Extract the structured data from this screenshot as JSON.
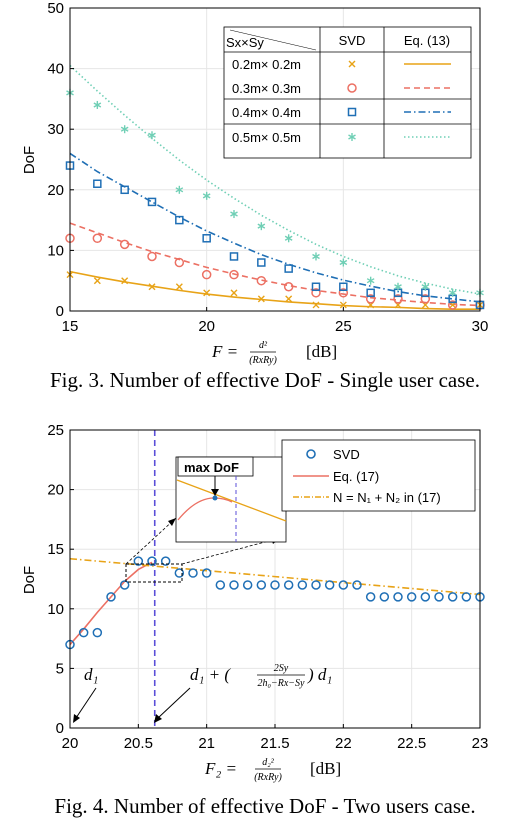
{
  "figure3": {
    "caption": "Fig. 3. Number of effective DoF - Single user case.",
    "xlabel_main": "F =",
    "xlabel_num": "d²",
    "xlabel_den": "(RxRy)",
    "xlabel_unit": "[dB]",
    "legend": {
      "corner": "Sx×Sy",
      "col_svd": "SVD",
      "col_eq": "Eq. (13)",
      "rows": [
        "0.2m× 0.2m",
        "0.3m× 0.3m",
        "0.4m× 0.4m",
        "0.5m× 0.5m"
      ]
    }
  },
  "figure4": {
    "caption": "Fig. 4. Number of effective DoF - Two users case.",
    "xlabel_main": "F₂ =",
    "xlabel_num": "d₂²",
    "xlabel_den": "(RxRy)",
    "xlabel_unit": "[dB]",
    "inset_label": "max DoF",
    "annot_d1": "d₁",
    "annot_expr_a": "d₁ + (",
    "annot_expr_num": "2Sy",
    "annot_expr_den": "2h₀−Rx−Sy",
    "annot_expr_b": ") d₁",
    "legend": {
      "svd": "SVD",
      "eq": "Eq. (17)",
      "neq": "N = N₁ + N₂ in (17)"
    }
  },
  "chart_data": [
    {
      "type": "scatter",
      "title": "",
      "xlabel": "F = d²/(RxRy) [dB]",
      "ylabel": "DoF",
      "xlim": [
        15,
        30
      ],
      "ylim": [
        0,
        50
      ],
      "xticks": [
        15,
        20,
        25,
        30
      ],
      "yticks": [
        0,
        10,
        20,
        30,
        40,
        50
      ],
      "grid": true,
      "legend_position": "top-right",
      "x": [
        15,
        16,
        17,
        18,
        19,
        20,
        21,
        22,
        23,
        24,
        25,
        26,
        27,
        28,
        29,
        30
      ],
      "series": [
        {
          "name": "0.2m× 0.2m",
          "kind": "svd",
          "marker": "x",
          "color": "#e8a317",
          "values": [
            6,
            5,
            5,
            4,
            4,
            3,
            3,
            2,
            2,
            1,
            1,
            1,
            1,
            1,
            1,
            1
          ]
        },
        {
          "name": "0.3m× 0.3m",
          "kind": "svd",
          "marker": "o",
          "color": "#ec7063",
          "values": [
            12,
            12,
            11,
            9,
            8,
            6,
            6,
            5,
            4,
            3,
            3,
            2,
            2,
            2,
            1,
            1
          ]
        },
        {
          "name": "0.4m× 0.4m",
          "kind": "svd",
          "marker": "s",
          "color": "#1f6fb5",
          "values": [
            24,
            21,
            20,
            18,
            15,
            12,
            9,
            8,
            7,
            4,
            4,
            3,
            3,
            3,
            2,
            1
          ]
        },
        {
          "name": "0.5m× 0.5m",
          "kind": "svd",
          "marker": "*",
          "color": "#6fcfb5",
          "values": [
            36,
            34,
            30,
            29,
            20,
            19,
            16,
            14,
            12,
            9,
            8,
            5,
            4,
            4,
            3,
            3
          ]
        },
        {
          "name": "0.2m× 0.2m",
          "kind": "Eq. (13)",
          "line": "solid",
          "color": "#e8a317",
          "values": [
            6.5,
            5.6,
            4.8,
            4.1,
            3.4,
            2.8,
            2.3,
            1.9,
            1.5,
            1.2,
            0.9,
            0.7,
            0.6,
            0.4,
            0.3,
            0.3
          ]
        },
        {
          "name": "0.3m× 0.3m",
          "kind": "Eq. (13)",
          "line": "dashed",
          "color": "#ec7063",
          "values": [
            14.5,
            12.9,
            11.3,
            9.8,
            8.5,
            7.2,
            6.1,
            5.1,
            4.2,
            3.4,
            2.8,
            2.2,
            1.8,
            1.4,
            1.1,
            0.9
          ]
        },
        {
          "name": "0.4m× 0.4m",
          "kind": "Eq. (13)",
          "line": "dashdot",
          "color": "#1f6fb5",
          "values": [
            26,
            23,
            20.5,
            18,
            15.5,
            13.2,
            11.2,
            9.3,
            7.7,
            6.3,
            5.1,
            4.1,
            3.2,
            2.5,
            2,
            1.5
          ]
        },
        {
          "name": "0.5m× 0.5m",
          "kind": "Eq. (13)",
          "line": "dotted",
          "color": "#6fcfb5",
          "values": [
            40.5,
            36.3,
            32.3,
            28.5,
            24.9,
            21.6,
            18.6,
            15.8,
            13.3,
            11,
            9,
            7.3,
            5.8,
            4.6,
            3.6,
            2.8
          ]
        }
      ]
    },
    {
      "type": "scatter",
      "title": "",
      "xlabel": "F₂ = d₂²/(RxRy) [dB]",
      "ylabel": "DoF",
      "xlim": [
        20,
        23
      ],
      "ylim": [
        0,
        25
      ],
      "xticks": [
        20,
        20.5,
        21,
        21.5,
        22,
        22.5,
        23
      ],
      "yticks": [
        0,
        5,
        10,
        15,
        20,
        25
      ],
      "grid": true,
      "legend_position": "top-right",
      "vertical_line_x": 20.62,
      "series": [
        {
          "name": "SVD",
          "marker": "o",
          "color": "#1f6fb5",
          "x": [
            20,
            20.1,
            20.2,
            20.3,
            20.4,
            20.5,
            20.6,
            20.7,
            20.8,
            20.9,
            21,
            21.1,
            21.2,
            21.3,
            21.4,
            21.5,
            21.6,
            21.7,
            21.8,
            21.9,
            22,
            22.1,
            22.2,
            22.3,
            22.4,
            22.5,
            22.6,
            22.7,
            22.8,
            22.9,
            23
          ],
          "values": [
            7,
            8,
            8,
            11,
            12,
            14,
            14,
            14,
            13,
            13,
            13,
            12,
            12,
            12,
            12,
            12,
            12,
            12,
            12,
            12,
            12,
            12,
            11,
            11,
            11,
            11,
            11,
            11,
            11,
            11,
            11
          ]
        },
        {
          "name": "Eq. (17)",
          "line": "solid",
          "color": "#ec7063",
          "x": [
            20,
            20.1,
            20.2,
            20.3,
            20.4,
            20.5,
            20.6
          ],
          "values": [
            7,
            8.3,
            9.7,
            11,
            12.3,
            13.3,
            13.9
          ]
        },
        {
          "name": "N = N₁ + N₂ in (17)",
          "line": "dashdot",
          "color": "#e8a317",
          "x": [
            20,
            20.5,
            21,
            21.5,
            22,
            22.5,
            23
          ],
          "values": [
            14.2,
            13.7,
            13.2,
            12.7,
            12.2,
            11.7,
            11.2
          ]
        }
      ]
    }
  ]
}
